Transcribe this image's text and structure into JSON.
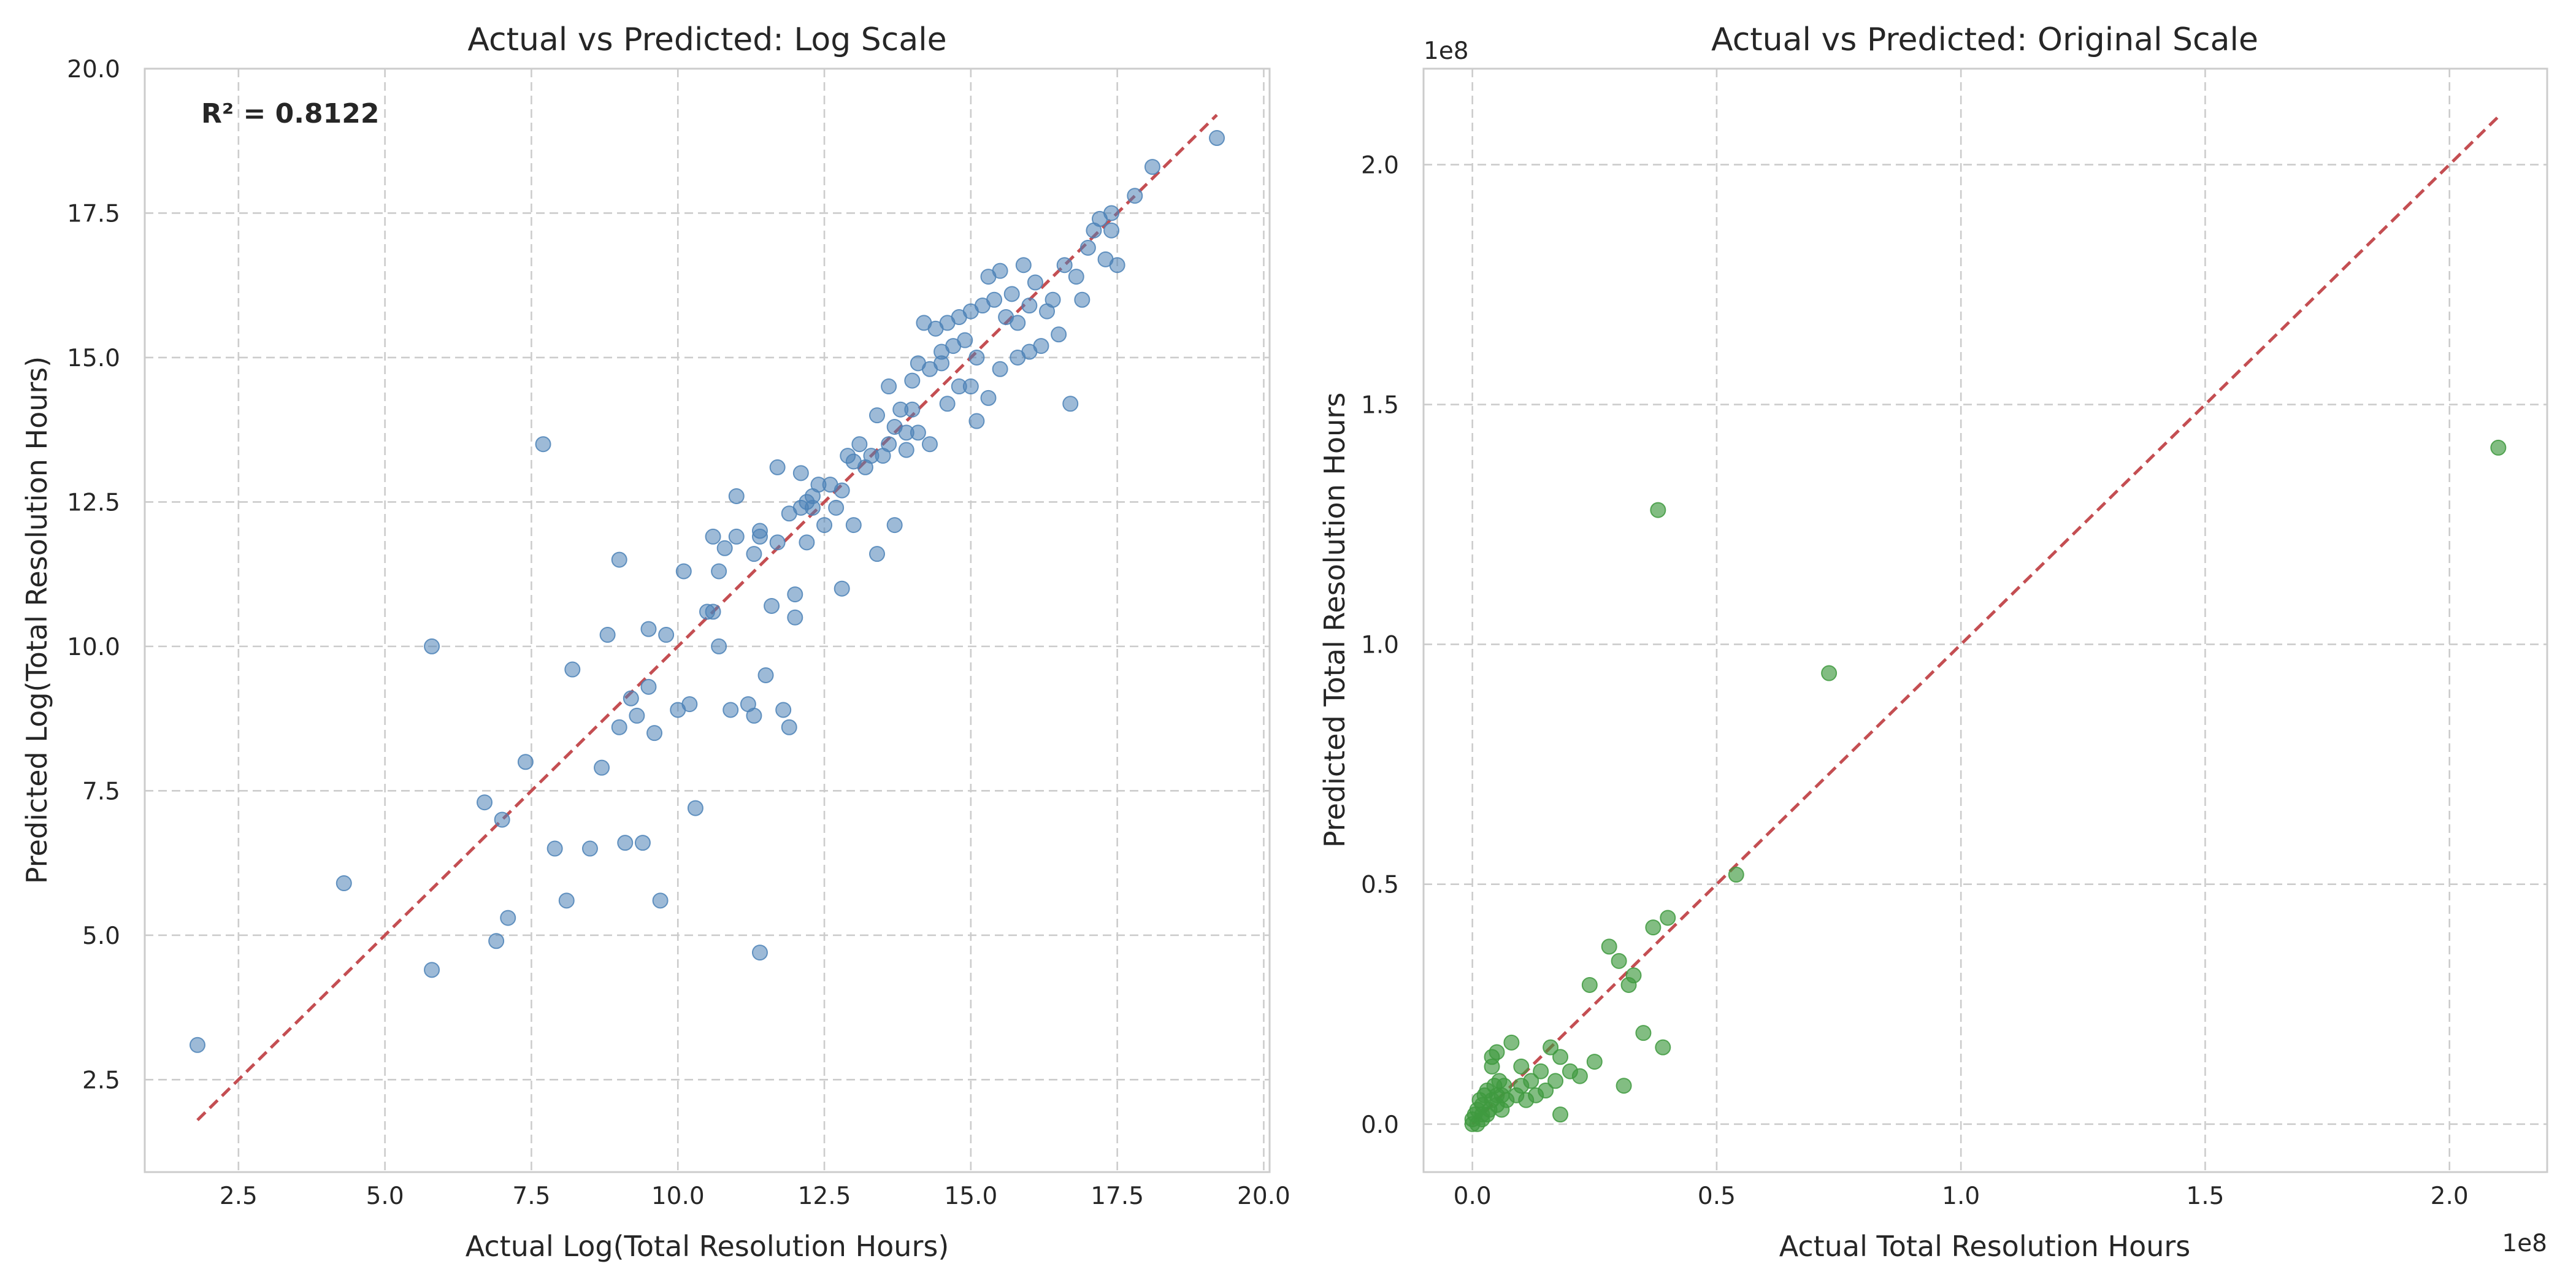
{
  "chart_data": [
    {
      "type": "scatter",
      "title": "Actual vs Predicted: Log Scale",
      "xlabel": "Actual Log(Total Resolution Hours)",
      "ylabel": "Predicted Log(Total Resolution Hours)",
      "xlim": [
        0.9,
        20.1
      ],
      "ylim": [
        0.9,
        20.0
      ],
      "xticks": [
        2.5,
        5.0,
        7.5,
        10.0,
        12.5,
        15.0,
        17.5,
        20.0
      ],
      "yticks": [
        2.5,
        5.0,
        7.5,
        10.0,
        12.5,
        15.0,
        17.5,
        20.0
      ],
      "tick_labels_x": [
        "2.5",
        "5.0",
        "7.5",
        "10.0",
        "12.5",
        "15.0",
        "17.5",
        "20.0"
      ],
      "tick_labels_y": [
        "2.5",
        "5.0",
        "7.5",
        "10.0",
        "12.5",
        "15.0",
        "17.5",
        "20.0"
      ],
      "grid": true,
      "point_color": "#4c82b7",
      "reference_line": {
        "from": [
          1.8,
          1.8
        ],
        "to": [
          19.2,
          19.2
        ],
        "color": "#c44e52"
      },
      "annotation": "R² = 0.8122",
      "series": [
        {
          "x": [
            1.8,
            4.3,
            5.8,
            5.8,
            6.7,
            6.9,
            7.0,
            7.1,
            7.4,
            7.7,
            7.9,
            8.1,
            8.2,
            8.5,
            8.7,
            8.8,
            9.0,
            9.0,
            9.1,
            9.2,
            9.3,
            9.4,
            9.5,
            9.5,
            9.6,
            9.7,
            9.8,
            10.0,
            10.1,
            10.2,
            10.3,
            10.5,
            10.6,
            10.6,
            10.7,
            10.7,
            10.8,
            10.9,
            11.0,
            11.0,
            11.2,
            11.3,
            11.3,
            11.4,
            11.4,
            11.4,
            11.5,
            11.6,
            11.7,
            11.7,
            11.8,
            11.9,
            11.9,
            12.0,
            12.0,
            12.1,
            12.1,
            12.2,
            12.2,
            12.3,
            12.3,
            12.4,
            12.5,
            12.6,
            12.7,
            12.8,
            12.8,
            12.9,
            13.0,
            13.0,
            13.1,
            13.2,
            13.3,
            13.4,
            13.4,
            13.5,
            13.6,
            13.6,
            13.7,
            13.7,
            13.8,
            13.9,
            13.9,
            14.0,
            14.0,
            14.1,
            14.1,
            14.2,
            14.3,
            14.3,
            14.4,
            14.5,
            14.5,
            14.6,
            14.6,
            14.7,
            14.8,
            14.8,
            14.9,
            15.0,
            15.0,
            15.1,
            15.1,
            15.2,
            15.3,
            15.3,
            15.4,
            15.5,
            15.5,
            15.6,
            15.7,
            15.8,
            15.8,
            15.9,
            16.0,
            16.0,
            16.1,
            16.2,
            16.3,
            16.4,
            16.5,
            16.6,
            16.7,
            16.8,
            16.9,
            17.0,
            17.1,
            17.2,
            17.3,
            17.4,
            17.4,
            17.5,
            17.8,
            18.1,
            19.2
          ],
          "y": [
            3.1,
            5.9,
            4.4,
            10.0,
            7.3,
            4.9,
            7.0,
            5.3,
            8.0,
            13.5,
            6.5,
            5.6,
            9.6,
            6.5,
            7.9,
            10.2,
            8.6,
            11.5,
            6.6,
            9.1,
            8.8,
            6.6,
            9.3,
            10.3,
            8.5,
            5.6,
            10.2,
            8.9,
            11.3,
            9.0,
            7.2,
            10.6,
            10.6,
            11.9,
            10.0,
            11.3,
            11.7,
            8.9,
            11.9,
            12.6,
            9.0,
            8.8,
            11.6,
            4.7,
            12.0,
            11.9,
            9.5,
            10.7,
            11.8,
            13.1,
            8.9,
            8.6,
            12.3,
            10.5,
            10.9,
            12.4,
            13.0,
            12.5,
            11.8,
            12.6,
            12.4,
            12.8,
            12.1,
            12.8,
            12.4,
            12.7,
            11.0,
            13.3,
            13.2,
            12.1,
            13.5,
            13.1,
            13.3,
            11.6,
            14.0,
            13.3,
            13.5,
            14.5,
            13.8,
            12.1,
            14.1,
            13.7,
            13.4,
            14.6,
            14.1,
            13.7,
            14.9,
            15.6,
            13.5,
            14.8,
            15.5,
            14.9,
            15.1,
            14.2,
            15.6,
            15.2,
            14.5,
            15.7,
            15.3,
            14.5,
            15.8,
            15.0,
            13.9,
            15.9,
            14.3,
            16.4,
            16.0,
            14.8,
            16.5,
            15.7,
            16.1,
            15.6,
            15.0,
            16.6,
            15.1,
            15.9,
            16.3,
            15.2,
            15.8,
            16.0,
            15.4,
            16.6,
            14.2,
            16.4,
            16.0,
            16.9,
            17.2,
            17.4,
            16.7,
            17.2,
            17.5,
            16.6,
            17.8,
            18.3,
            18.8
          ]
        }
      ]
    },
    {
      "type": "scatter",
      "title": "Actual vs Predicted: Original Scale",
      "xlabel": "Actual Total Resolution Hours",
      "ylabel": "Predicted Total Resolution Hours",
      "x_offset_text": "1e8",
      "y_offset_text": "1e8",
      "xlim": [
        -0.1,
        2.2
      ],
      "ylim": [
        -0.1,
        2.2
      ],
      "xticks": [
        0.0,
        0.5,
        1.0,
        1.5,
        2.0
      ],
      "yticks": [
        0.0,
        0.5,
        1.0,
        1.5,
        2.0
      ],
      "tick_labels_x": [
        "0.0",
        "0.5",
        "1.0",
        "1.5",
        "2.0"
      ],
      "tick_labels_y": [
        "0.0",
        "0.5",
        "1.0",
        "1.5",
        "2.0"
      ],
      "grid": true,
      "point_color": "#3f9a3f",
      "reference_line": {
        "from": [
          0.0,
          0.0
        ],
        "to": [
          2.1,
          2.1
        ],
        "color": "#c44e52"
      },
      "series": [
        {
          "x": [
            0.0,
            0.0,
            0.005,
            0.01,
            0.01,
            0.015,
            0.02,
            0.02,
            0.025,
            0.03,
            0.03,
            0.035,
            0.04,
            0.04,
            0.045,
            0.05,
            0.05,
            0.055,
            0.06,
            0.06,
            0.065,
            0.07,
            0.08,
            0.09,
            0.1,
            0.1,
            0.11,
            0.12,
            0.13,
            0.14,
            0.15,
            0.16,
            0.17,
            0.18,
            0.18,
            0.2,
            0.22,
            0.24,
            0.25,
            0.28,
            0.3,
            0.31,
            0.32,
            0.33,
            0.35,
            0.37,
            0.38,
            0.39,
            0.4,
            0.54,
            0.73,
            2.1,
            0.04,
            0.05,
            0.02
          ],
          "y": [
            0.0,
            0.01,
            0.02,
            0.0,
            0.03,
            0.05,
            0.01,
            0.04,
            0.06,
            0.02,
            0.07,
            0.03,
            0.05,
            0.14,
            0.08,
            0.15,
            0.04,
            0.09,
            0.06,
            0.03,
            0.08,
            0.05,
            0.17,
            0.06,
            0.12,
            0.08,
            0.05,
            0.09,
            0.06,
            0.11,
            0.07,
            0.16,
            0.09,
            0.14,
            0.02,
            0.11,
            0.1,
            0.29,
            0.13,
            0.37,
            0.34,
            0.08,
            0.29,
            0.31,
            0.19,
            0.41,
            1.28,
            0.16,
            0.43,
            0.52,
            0.94,
            1.41,
            0.12,
            0.06,
            0.02
          ]
        }
      ]
    }
  ]
}
